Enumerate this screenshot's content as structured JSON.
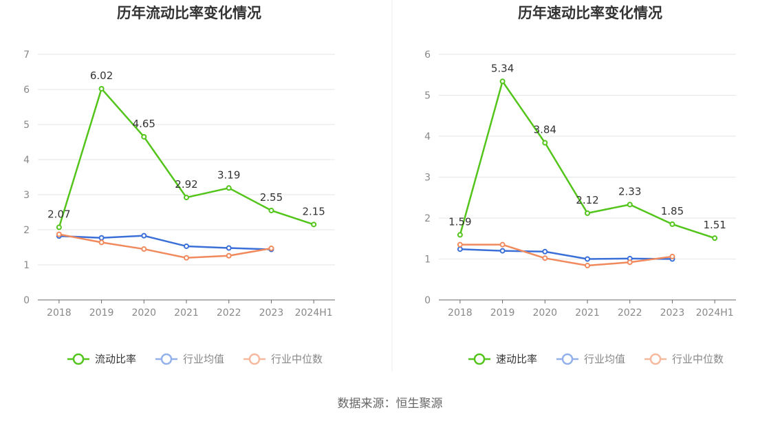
{
  "source": "数据来源：恒生聚源",
  "colors": {
    "green": "#52c41a",
    "blue": "#3a6fd8",
    "orange": "#f08a5d"
  },
  "chart_data": [
    {
      "type": "line",
      "title": "历年流动比率变化情况",
      "categories": [
        "2018",
        "2019",
        "2020",
        "2021",
        "2022",
        "2023",
        "2024H1"
      ],
      "ylim": [
        0,
        7
      ],
      "yticks": [
        0,
        1,
        2,
        3,
        4,
        5,
        6,
        7
      ],
      "grid": true,
      "legend_position": "bottom",
      "series": [
        {
          "name": "流动比率",
          "color": "#52c41a",
          "labels": true,
          "values": [
            2.07,
            6.02,
            4.65,
            2.92,
            3.19,
            2.55,
            2.15
          ]
        },
        {
          "name": "行业均值",
          "color": "#3a6fd8",
          "labels": false,
          "values": [
            1.82,
            1.77,
            1.83,
            1.53,
            1.48,
            1.44,
            null
          ]
        },
        {
          "name": "行业中位数",
          "color": "#f08a5d",
          "labels": false,
          "values": [
            1.87,
            1.64,
            1.45,
            1.2,
            1.26,
            1.47,
            null
          ]
        }
      ]
    },
    {
      "type": "line",
      "title": "历年速动比率变化情况",
      "categories": [
        "2018",
        "2019",
        "2020",
        "2021",
        "2022",
        "2023",
        "2024H1"
      ],
      "ylim": [
        0,
        6
      ],
      "yticks": [
        0,
        1,
        2,
        3,
        4,
        5,
        6
      ],
      "grid": true,
      "legend_position": "bottom",
      "series": [
        {
          "name": "速动比率",
          "color": "#52c41a",
          "labels": true,
          "values": [
            1.59,
            5.34,
            3.84,
            2.12,
            2.33,
            1.85,
            1.51
          ]
        },
        {
          "name": "行业均值",
          "color": "#3a6fd8",
          "labels": false,
          "values": [
            1.24,
            1.2,
            1.18,
            1.0,
            1.01,
            1.0,
            null
          ]
        },
        {
          "name": "行业中位数",
          "color": "#f08a5d",
          "labels": false,
          "values": [
            1.35,
            1.35,
            1.02,
            0.84,
            0.92,
            1.06,
            null
          ]
        }
      ]
    }
  ]
}
